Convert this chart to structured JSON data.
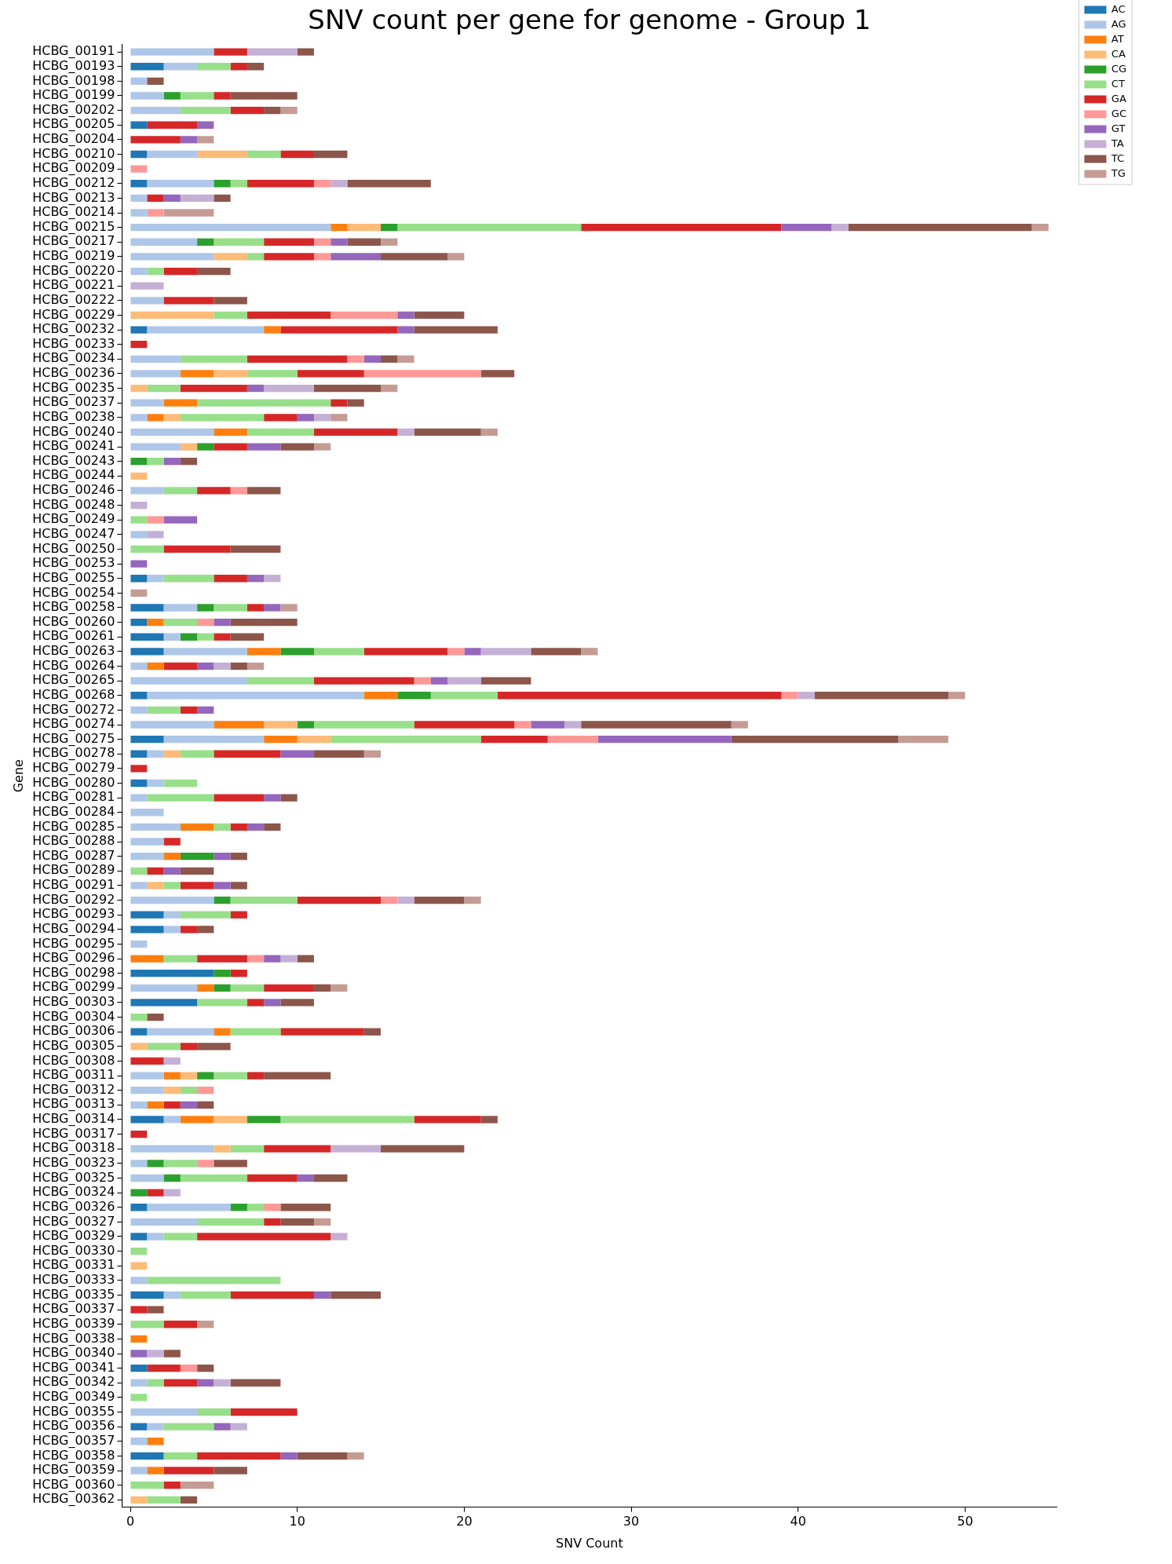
{
  "chart_data": {
    "type": "bar",
    "orientation": "horizontal",
    "stacked": true,
    "title": "SNV count per gene for genome - Group 1",
    "xlabel": "SNV Count",
    "ylabel": "Gene",
    "xlim": [
      -0.5,
      55.5
    ],
    "xticks": [
      0,
      10,
      20,
      30,
      40,
      50
    ],
    "legend": "top right",
    "categories": [
      "HCBG_00191",
      "HCBG_00193",
      "HCBG_00198",
      "HCBG_00199",
      "HCBG_00202",
      "HCBG_00205",
      "HCBG_00204",
      "HCBG_00210",
      "HCBG_00209",
      "HCBG_00212",
      "HCBG_00213",
      "HCBG_00214",
      "HCBG_00215",
      "HCBG_00217",
      "HCBG_00219",
      "HCBG_00220",
      "HCBG_00221",
      "HCBG_00222",
      "HCBG_00229",
      "HCBG_00232",
      "HCBG_00233",
      "HCBG_00234",
      "HCBG_00236",
      "HCBG_00235",
      "HCBG_00237",
      "HCBG_00238",
      "HCBG_00240",
      "HCBG_00241",
      "HCBG_00243",
      "HCBG_00244",
      "HCBG_00246",
      "HCBG_00248",
      "HCBG_00249",
      "HCBG_00247",
      "HCBG_00250",
      "HCBG_00253",
      "HCBG_00255",
      "HCBG_00254",
      "HCBG_00258",
      "HCBG_00260",
      "HCBG_00261",
      "HCBG_00263",
      "HCBG_00264",
      "HCBG_00265",
      "HCBG_00268",
      "HCBG_00272",
      "HCBG_00274",
      "HCBG_00275",
      "HCBG_00278",
      "HCBG_00279",
      "HCBG_00280",
      "HCBG_00281",
      "HCBG_00284",
      "HCBG_00285",
      "HCBG_00288",
      "HCBG_00287",
      "HCBG_00289",
      "HCBG_00291",
      "HCBG_00292",
      "HCBG_00293",
      "HCBG_00294",
      "HCBG_00295",
      "HCBG_00296",
      "HCBG_00298",
      "HCBG_00299",
      "HCBG_00303",
      "HCBG_00304",
      "HCBG_00306",
      "HCBG_00305",
      "HCBG_00308",
      "HCBG_00311",
      "HCBG_00312",
      "HCBG_00313",
      "HCBG_00314",
      "HCBG_00317",
      "HCBG_00318",
      "HCBG_00323",
      "HCBG_00325",
      "HCBG_00324",
      "HCBG_00326",
      "HCBG_00327",
      "HCBG_00329",
      "HCBG_00330",
      "HCBG_00331",
      "HCBG_00333",
      "HCBG_00335",
      "HCBG_00337",
      "HCBG_00339",
      "HCBG_00338",
      "HCBG_00340",
      "HCBG_00341",
      "HCBG_00342",
      "HCBG_00349",
      "HCBG_00355",
      "HCBG_00356",
      "HCBG_00357",
      "HCBG_00358",
      "HCBG_00359",
      "HCBG_00360",
      "HCBG_00362"
    ],
    "series": [
      {
        "name": "AC",
        "color": "#1f77b4",
        "values": [
          null,
          2,
          null,
          null,
          null,
          1,
          null,
          1,
          null,
          1,
          null,
          null,
          null,
          null,
          null,
          null,
          null,
          null,
          null,
          1,
          null,
          null,
          null,
          null,
          null,
          null,
          null,
          null,
          null,
          null,
          null,
          null,
          null,
          null,
          null,
          null,
          1,
          null,
          2,
          1,
          2,
          2,
          null,
          null,
          1,
          null,
          null,
          2,
          1,
          null,
          1,
          null,
          null,
          null,
          null,
          null,
          null,
          null,
          null,
          2,
          2,
          null,
          null,
          5,
          null,
          4,
          null,
          1,
          null,
          null,
          null,
          null,
          null,
          2,
          null,
          null,
          null,
          null,
          null,
          1,
          null,
          1,
          null,
          null,
          null,
          2,
          null,
          null,
          null,
          null,
          1,
          null,
          null,
          null,
          1,
          null,
          2,
          null,
          null,
          null
        ]
      },
      {
        "name": "AG",
        "color": "#aec7e8",
        "values": [
          5,
          2,
          1,
          2,
          3,
          null,
          null,
          3,
          null,
          4,
          1,
          1,
          12,
          4,
          5,
          1,
          null,
          2,
          null,
          7,
          null,
          3,
          3,
          null,
          2,
          1,
          5,
          3,
          null,
          null,
          2,
          null,
          null,
          1,
          null,
          null,
          1,
          null,
          2,
          null,
          1,
          5,
          1,
          7,
          13,
          1,
          5,
          6,
          1,
          null,
          1,
          1,
          2,
          3,
          2,
          2,
          null,
          1,
          5,
          1,
          1,
          1,
          null,
          null,
          4,
          null,
          null,
          4,
          null,
          null,
          2,
          2,
          1,
          1,
          null,
          5,
          1,
          2,
          null,
          5,
          4,
          1,
          null,
          null,
          1,
          1,
          null,
          null,
          null,
          null,
          null,
          1,
          null,
          4,
          1,
          1,
          null,
          1,
          null,
          null
        ]
      },
      {
        "name": "AT",
        "color": "#ff7f0e",
        "values": [
          null,
          null,
          null,
          null,
          null,
          null,
          null,
          null,
          null,
          null,
          null,
          null,
          1,
          null,
          null,
          null,
          null,
          null,
          null,
          1,
          null,
          null,
          2,
          null,
          2,
          1,
          2,
          null,
          null,
          null,
          null,
          null,
          null,
          null,
          null,
          null,
          null,
          null,
          null,
          1,
          null,
          2,
          1,
          null,
          2,
          null,
          3,
          2,
          null,
          null,
          null,
          null,
          null,
          2,
          null,
          1,
          null,
          null,
          null,
          null,
          null,
          null,
          2,
          null,
          1,
          null,
          null,
          1,
          null,
          null,
          1,
          null,
          1,
          2,
          null,
          null,
          null,
          null,
          null,
          null,
          null,
          null,
          null,
          null,
          null,
          null,
          null,
          null,
          1,
          null,
          null,
          null,
          null,
          null,
          null,
          1,
          null,
          1,
          null,
          null
        ]
      },
      {
        "name": "CA",
        "color": "#ffbb78",
        "values": [
          null,
          null,
          null,
          null,
          null,
          null,
          null,
          3,
          null,
          null,
          null,
          null,
          2,
          null,
          2,
          null,
          null,
          null,
          5,
          null,
          null,
          null,
          2,
          1,
          null,
          1,
          null,
          1,
          null,
          1,
          null,
          null,
          null,
          null,
          null,
          null,
          null,
          null,
          null,
          null,
          null,
          null,
          null,
          null,
          null,
          null,
          2,
          2,
          1,
          null,
          null,
          null,
          null,
          null,
          null,
          null,
          null,
          1,
          null,
          null,
          null,
          null,
          null,
          null,
          null,
          null,
          null,
          null,
          1,
          null,
          1,
          1,
          null,
          2,
          null,
          1,
          null,
          null,
          null,
          null,
          null,
          null,
          null,
          1,
          null,
          null,
          null,
          null,
          null,
          null,
          null,
          null,
          null,
          null,
          null,
          null,
          null,
          null,
          null,
          1
        ]
      },
      {
        "name": "CG",
        "color": "#2ca02c",
        "values": [
          null,
          null,
          null,
          1,
          null,
          null,
          null,
          null,
          null,
          1,
          null,
          null,
          1,
          1,
          null,
          null,
          null,
          null,
          null,
          null,
          null,
          null,
          null,
          null,
          null,
          null,
          null,
          1,
          1,
          null,
          null,
          null,
          null,
          null,
          null,
          null,
          null,
          null,
          1,
          null,
          1,
          2,
          null,
          null,
          2,
          null,
          1,
          null,
          null,
          null,
          null,
          null,
          null,
          null,
          null,
          2,
          null,
          null,
          1,
          null,
          null,
          null,
          null,
          1,
          1,
          null,
          null,
          null,
          null,
          null,
          1,
          null,
          null,
          2,
          null,
          null,
          1,
          1,
          1,
          1,
          null,
          null,
          null,
          null,
          null,
          null,
          null,
          null,
          null,
          null,
          null,
          null,
          null,
          null,
          null,
          null,
          null,
          null,
          null,
          null
        ]
      },
      {
        "name": "CT",
        "color": "#98df8a",
        "values": [
          null,
          2,
          null,
          2,
          3,
          null,
          null,
          2,
          null,
          1,
          null,
          null,
          11,
          3,
          1,
          1,
          null,
          null,
          2,
          null,
          null,
          4,
          3,
          2,
          8,
          5,
          4,
          null,
          1,
          null,
          2,
          null,
          1,
          null,
          2,
          null,
          3,
          null,
          2,
          2,
          1,
          3,
          null,
          4,
          4,
          2,
          6,
          9,
          2,
          null,
          2,
          4,
          null,
          1,
          null,
          null,
          1,
          1,
          4,
          3,
          null,
          null,
          2,
          null,
          2,
          3,
          1,
          3,
          2,
          null,
          2,
          1,
          null,
          8,
          null,
          2,
          2,
          4,
          null,
          1,
          4,
          2,
          1,
          null,
          8,
          3,
          null,
          2,
          null,
          null,
          null,
          1,
          1,
          2,
          3,
          null,
          2,
          null,
          2,
          2
        ]
      },
      {
        "name": "GA",
        "color": "#d62728",
        "values": [
          2,
          1,
          null,
          1,
          2,
          3,
          3,
          2,
          null,
          4,
          1,
          null,
          12,
          3,
          3,
          2,
          null,
          3,
          5,
          7,
          1,
          6,
          4,
          4,
          1,
          2,
          5,
          2,
          null,
          null,
          2,
          null,
          null,
          null,
          4,
          null,
          2,
          null,
          1,
          null,
          1,
          5,
          2,
          6,
          17,
          1,
          6,
          4,
          4,
          1,
          null,
          3,
          null,
          1,
          1,
          null,
          1,
          2,
          5,
          1,
          1,
          null,
          3,
          1,
          3,
          1,
          null,
          5,
          1,
          2,
          1,
          null,
          1,
          4,
          1,
          4,
          null,
          3,
          1,
          null,
          1,
          8,
          null,
          null,
          null,
          5,
          1,
          2,
          null,
          null,
          2,
          2,
          null,
          4,
          null,
          null,
          5,
          3,
          1,
          null
        ]
      },
      {
        "name": "GC",
        "color": "#ff9896",
        "values": [
          null,
          null,
          null,
          null,
          null,
          null,
          null,
          null,
          1,
          1,
          null,
          1,
          null,
          1,
          1,
          null,
          null,
          null,
          4,
          null,
          null,
          1,
          7,
          null,
          null,
          null,
          null,
          null,
          null,
          null,
          1,
          null,
          1,
          null,
          null,
          null,
          null,
          null,
          null,
          1,
          null,
          1,
          null,
          1,
          1,
          null,
          1,
          3,
          null,
          null,
          null,
          null,
          null,
          null,
          null,
          null,
          null,
          null,
          1,
          null,
          null,
          null,
          1,
          null,
          null,
          null,
          null,
          null,
          null,
          null,
          null,
          1,
          null,
          null,
          null,
          null,
          1,
          null,
          null,
          1,
          null,
          null,
          null,
          null,
          null,
          null,
          null,
          null,
          null,
          null,
          1,
          null,
          null,
          null,
          null,
          null,
          null,
          null,
          null,
          null
        ]
      },
      {
        "name": "GT",
        "color": "#9467bd",
        "values": [
          null,
          null,
          null,
          null,
          null,
          1,
          1,
          null,
          null,
          null,
          1,
          null,
          3,
          1,
          3,
          null,
          null,
          null,
          1,
          1,
          null,
          1,
          null,
          1,
          null,
          1,
          null,
          2,
          1,
          null,
          null,
          null,
          2,
          null,
          null,
          1,
          1,
          null,
          1,
          1,
          null,
          1,
          1,
          1,
          null,
          1,
          2,
          8,
          2,
          null,
          null,
          1,
          null,
          1,
          null,
          1,
          1,
          1,
          null,
          null,
          null,
          null,
          1,
          null,
          null,
          1,
          null,
          null,
          null,
          null,
          null,
          null,
          1,
          null,
          null,
          null,
          null,
          1,
          null,
          null,
          null,
          null,
          null,
          null,
          null,
          1,
          null,
          null,
          null,
          1,
          null,
          1,
          null,
          null,
          1,
          null,
          1,
          null,
          null,
          null
        ]
      },
      {
        "name": "TA",
        "color": "#c5b0d5",
        "values": [
          3,
          null,
          null,
          null,
          null,
          null,
          null,
          null,
          null,
          1,
          2,
          null,
          1,
          null,
          null,
          null,
          2,
          null,
          null,
          null,
          null,
          null,
          null,
          3,
          null,
          1,
          1,
          null,
          null,
          null,
          null,
          1,
          null,
          1,
          null,
          null,
          1,
          null,
          null,
          null,
          null,
          3,
          1,
          2,
          1,
          null,
          1,
          null,
          null,
          null,
          null,
          null,
          null,
          null,
          null,
          null,
          null,
          null,
          1,
          null,
          null,
          null,
          1,
          null,
          null,
          null,
          null,
          null,
          null,
          1,
          null,
          null,
          null,
          null,
          null,
          3,
          null,
          null,
          1,
          null,
          null,
          1,
          null,
          null,
          null,
          null,
          null,
          null,
          null,
          1,
          null,
          1,
          null,
          null,
          1,
          null,
          null,
          null,
          null,
          null
        ]
      },
      {
        "name": "TC",
        "color": "#8c564b",
        "values": [
          1,
          1,
          1,
          4,
          1,
          null,
          null,
          2,
          null,
          5,
          1,
          null,
          11,
          2,
          4,
          2,
          null,
          2,
          3,
          5,
          null,
          1,
          2,
          4,
          1,
          null,
          4,
          2,
          1,
          null,
          2,
          null,
          null,
          null,
          3,
          null,
          null,
          null,
          null,
          4,
          2,
          3,
          1,
          3,
          8,
          null,
          9,
          10,
          3,
          null,
          null,
          1,
          null,
          1,
          null,
          1,
          2,
          1,
          3,
          null,
          1,
          null,
          1,
          null,
          1,
          2,
          1,
          1,
          2,
          null,
          4,
          null,
          1,
          1,
          null,
          5,
          2,
          2,
          null,
          3,
          2,
          null,
          null,
          null,
          null,
          3,
          1,
          null,
          null,
          1,
          1,
          3,
          null,
          null,
          null,
          null,
          3,
          2,
          null,
          1
        ]
      },
      {
        "name": "TG",
        "color": "#c49c94",
        "values": [
          null,
          null,
          null,
          null,
          1,
          null,
          1,
          null,
          null,
          null,
          null,
          3,
          1,
          1,
          1,
          null,
          null,
          null,
          null,
          null,
          null,
          1,
          null,
          1,
          null,
          1,
          1,
          1,
          null,
          null,
          null,
          null,
          null,
          null,
          null,
          null,
          null,
          1,
          1,
          null,
          null,
          1,
          1,
          null,
          1,
          null,
          1,
          3,
          1,
          null,
          null,
          null,
          null,
          null,
          null,
          null,
          null,
          null,
          1,
          null,
          null,
          null,
          null,
          null,
          1,
          null,
          null,
          null,
          null,
          null,
          null,
          null,
          null,
          null,
          null,
          null,
          null,
          null,
          null,
          null,
          1,
          null,
          null,
          null,
          null,
          null,
          null,
          1,
          null,
          null,
          null,
          null,
          null,
          null,
          null,
          null,
          1,
          null,
          2,
          null
        ]
      }
    ]
  }
}
